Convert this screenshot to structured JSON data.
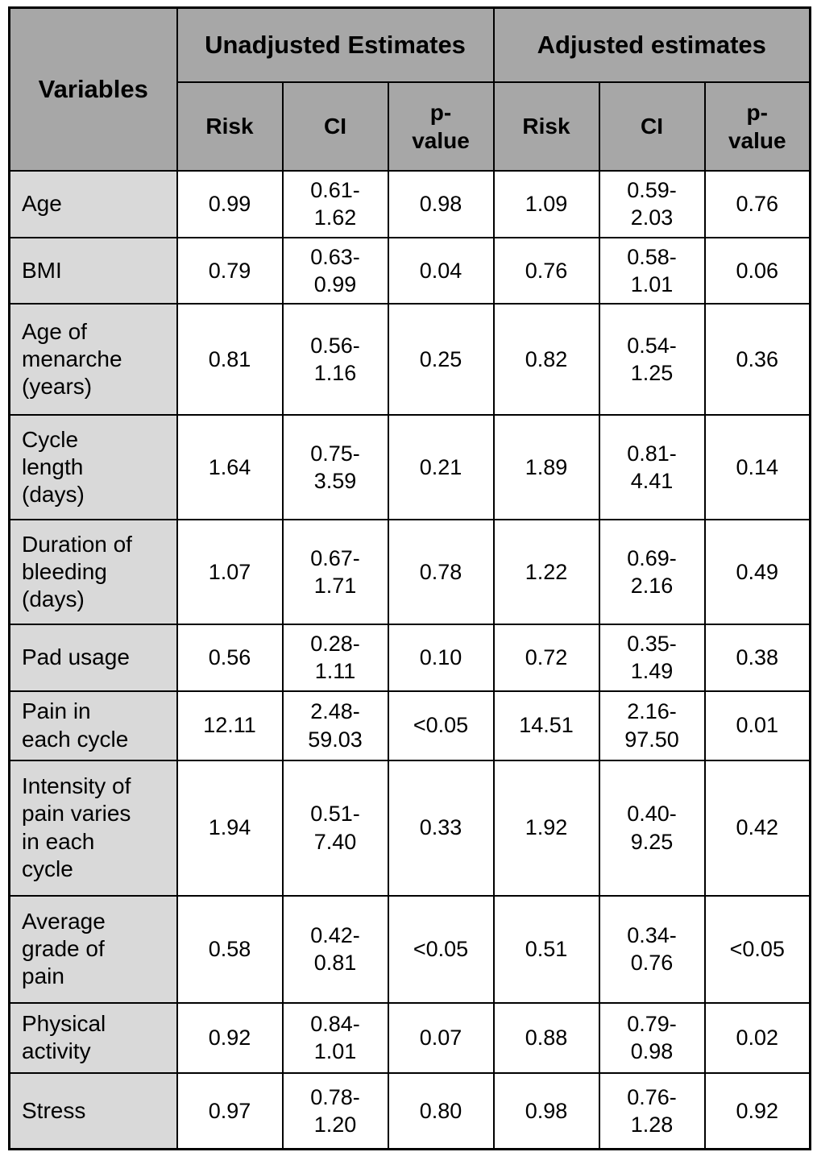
{
  "colors": {
    "header_bg": "#a7a7a7",
    "variable_bg": "#d9d9d9",
    "border": "#000000"
  },
  "table": {
    "header": {
      "variables": "Variables",
      "groups": [
        {
          "label": "Unadjusted Estimates"
        },
        {
          "label": "Adjusted estimates"
        }
      ],
      "sub_columns": [
        "Risk",
        "CI",
        "p-\nvalue"
      ]
    },
    "rows": [
      {
        "variable": "Age",
        "unadjusted": {
          "risk": "0.99",
          "ci": "0.61-\n1.62",
          "p": "0.98"
        },
        "adjusted": {
          "risk": "1.09",
          "ci": "0.59-\n2.03",
          "p": "0.76"
        }
      },
      {
        "variable": "BMI",
        "unadjusted": {
          "risk": "0.79",
          "ci": "0.63-\n0.99",
          "p": "0.04"
        },
        "adjusted": {
          "risk": "0.76",
          "ci": "0.58-\n1.01",
          "p": "0.06"
        }
      },
      {
        "variable": "Age of\nmenarche\n(years)",
        "unadjusted": {
          "risk": "0.81",
          "ci": "0.56-\n1.16",
          "p": "0.25"
        },
        "adjusted": {
          "risk": "0.82",
          "ci": "0.54-\n1.25",
          "p": "0.36"
        }
      },
      {
        "variable": "Cycle\nlength\n(days)",
        "unadjusted": {
          "risk": "1.64",
          "ci": "0.75-\n3.59",
          "p": "0.21"
        },
        "adjusted": {
          "risk": "1.89",
          "ci": "0.81-\n4.41",
          "p": "0.14"
        }
      },
      {
        "variable": "Duration of\nbleeding\n(days)",
        "unadjusted": {
          "risk": "1.07",
          "ci": "0.67-\n1.71",
          "p": "0.78"
        },
        "adjusted": {
          "risk": "1.22",
          "ci": "0.69-\n2.16",
          "p": "0.49"
        }
      },
      {
        "variable": "Pad usage",
        "unadjusted": {
          "risk": "0.56",
          "ci": "0.28-\n1.11",
          "p": "0.10"
        },
        "adjusted": {
          "risk": "0.72",
          "ci": "0.35-\n1.49",
          "p": "0.38"
        }
      },
      {
        "variable": "Pain in\neach cycle",
        "unadjusted": {
          "risk": "12.11",
          "ci": "2.48-\n59.03",
          "p": "<0.05"
        },
        "adjusted": {
          "risk": "14.51",
          "ci": "2.16-\n97.50",
          "p": "0.01"
        }
      },
      {
        "variable": "Intensity of\npain varies\nin each\ncycle",
        "unadjusted": {
          "risk": "1.94",
          "ci": "0.51-\n7.40",
          "p": "0.33"
        },
        "adjusted": {
          "risk": "1.92",
          "ci": "0.40-\n9.25",
          "p": "0.42"
        }
      },
      {
        "variable": "Average\ngrade of\npain",
        "unadjusted": {
          "risk": "0.58",
          "ci": "0.42-\n0.81",
          "p": "<0.05"
        },
        "adjusted": {
          "risk": "0.51",
          "ci": "0.34-\n0.76",
          "p": "<0.05"
        }
      },
      {
        "variable": "Physical\nactivity",
        "unadjusted": {
          "risk": "0.92",
          "ci": "0.84-\n1.01",
          "p": "0.07"
        },
        "adjusted": {
          "risk": "0.88",
          "ci": "0.79-\n0.98",
          "p": "0.02"
        }
      },
      {
        "variable": "Stress",
        "unadjusted": {
          "risk": "0.97",
          "ci": "0.78-\n1.20",
          "p": "0.80"
        },
        "adjusted": {
          "risk": "0.98",
          "ci": "0.76-\n1.28",
          "p": "0.92"
        }
      }
    ]
  }
}
